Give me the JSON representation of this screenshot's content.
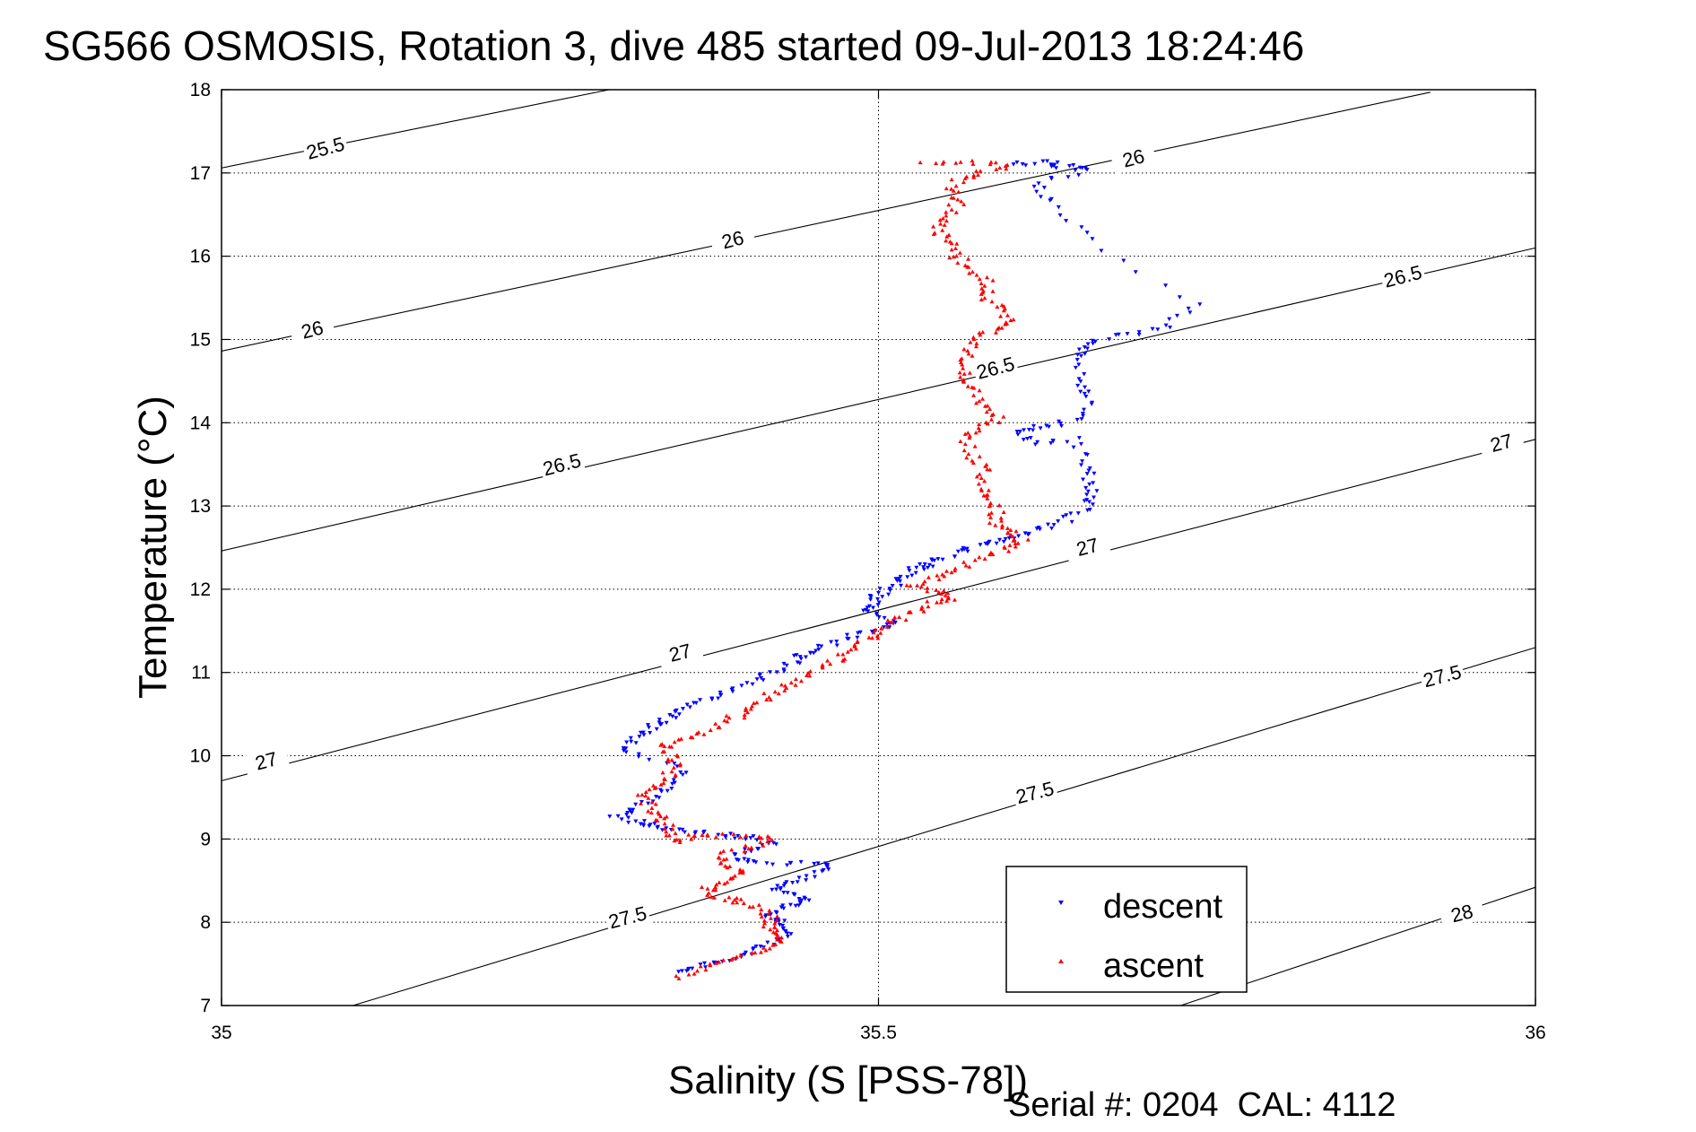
{
  "chart_data": {
    "type": "scatter",
    "title": "SG566 OSMOSIS, Rotation 3, dive 485 started 09-Jul-2013 18:24:46",
    "xlabel": "Salinity (S [PSS-78])",
    "ylabel": "Temperature (°C)",
    "xlim": [
      35,
      36
    ],
    "ylim": [
      7,
      18
    ],
    "xticks": [
      "35",
      "35.5",
      "36"
    ],
    "yticks": [
      "7",
      "8",
      "9",
      "10",
      "11",
      "12",
      "13",
      "14",
      "15",
      "16",
      "17",
      "18"
    ],
    "grid": true,
    "legend_position": "bottom-right",
    "footer": "Serial #: 0204  CAL: 4112",
    "contours": [
      {
        "label": "25.5",
        "points": [
          [
            35,
            17.06
          ],
          [
            35.295,
            18.0
          ]
        ]
      },
      {
        "label": "26",
        "points": [
          [
            35,
            14.86
          ],
          [
            35.92,
            17.97
          ]
        ]
      },
      {
        "label": "26.5",
        "points": [
          [
            35,
            12.46
          ],
          [
            36,
            16.1
          ]
        ]
      },
      {
        "label": "27",
        "points": [
          [
            35,
            9.7
          ],
          [
            36,
            13.8
          ]
        ]
      },
      {
        "label": "27.5",
        "points": [
          [
            35.1,
            7.0
          ],
          [
            36,
            11.3
          ]
        ]
      },
      {
        "label": "28",
        "points": [
          [
            35.73,
            7.0
          ],
          [
            36,
            8.42
          ]
        ]
      }
    ],
    "contour_labels": [
      {
        "text": "25.5",
        "s": 35.08,
        "t": 17.24
      },
      {
        "text": "26",
        "s": 35.39,
        "t": 16.14
      },
      {
        "text": "26",
        "s": 35.07,
        "t": 15.06
      },
      {
        "text": "26",
        "s": 35.695,
        "t": 17.12
      },
      {
        "text": "26.5",
        "s": 35.26,
        "t": 13.44
      },
      {
        "text": "26.5",
        "s": 35.59,
        "t": 14.6
      },
      {
        "text": "26.5",
        "s": 35.9,
        "t": 15.7
      },
      {
        "text": "27",
        "s": 35.035,
        "t": 9.88
      },
      {
        "text": "27",
        "s": 35.35,
        "t": 11.18
      },
      {
        "text": "27",
        "s": 35.66,
        "t": 12.45
      },
      {
        "text": "27",
        "s": 35.975,
        "t": 13.7
      },
      {
        "text": "27.5",
        "s": 35.31,
        "t": 8.0
      },
      {
        "text": "27.5",
        "s": 35.62,
        "t": 9.5
      },
      {
        "text": "27.5",
        "s": 35.93,
        "t": 10.9
      },
      {
        "text": "28",
        "s": 35.945,
        "t": 8.05
      }
    ],
    "series": [
      {
        "name": "descent",
        "color": "#0000ff",
        "marker": "triangle-down",
        "trace": [
          [
            35.6,
            17.1
          ],
          [
            35.63,
            17.13
          ],
          [
            35.64,
            17.08
          ],
          [
            35.66,
            17.05
          ],
          [
            35.62,
            16.9
          ],
          [
            35.63,
            16.65
          ],
          [
            35.66,
            16.2
          ],
          [
            35.74,
            15.4
          ],
          [
            35.72,
            15.15
          ],
          [
            35.68,
            15.05
          ],
          [
            35.66,
            14.95
          ],
          [
            35.655,
            14.8
          ],
          [
            35.655,
            14.5
          ],
          [
            35.66,
            14.3
          ],
          [
            35.65,
            14.05
          ],
          [
            35.625,
            13.95
          ],
          [
            35.61,
            13.9
          ],
          [
            35.615,
            13.75
          ],
          [
            35.65,
            13.8
          ],
          [
            35.655,
            13.5
          ],
          [
            35.66,
            13.3
          ],
          [
            35.665,
            13.1
          ],
          [
            35.655,
            12.95
          ],
          [
            35.64,
            12.8
          ],
          [
            35.62,
            12.7
          ],
          [
            35.6,
            12.6
          ],
          [
            35.585,
            12.55
          ],
          [
            35.565,
            12.48
          ],
          [
            35.55,
            12.38
          ],
          [
            35.54,
            12.3
          ],
          [
            35.53,
            12.25
          ],
          [
            35.52,
            12.15
          ],
          [
            35.51,
            12.05
          ],
          [
            35.5,
            11.93
          ],
          [
            35.495,
            11.82
          ],
          [
            35.49,
            11.72
          ],
          [
            35.51,
            11.62
          ],
          [
            35.505,
            11.52
          ],
          [
            35.485,
            11.45
          ],
          [
            35.465,
            11.35
          ],
          [
            35.45,
            11.25
          ],
          [
            35.44,
            11.17
          ],
          [
            35.425,
            11.05
          ],
          [
            35.41,
            10.95
          ],
          [
            35.395,
            10.82
          ],
          [
            35.375,
            10.7
          ],
          [
            35.355,
            10.6
          ],
          [
            35.345,
            10.5
          ],
          [
            35.335,
            10.4
          ],
          [
            35.325,
            10.3
          ],
          [
            35.315,
            10.18
          ],
          [
            35.305,
            10.05
          ],
          [
            35.35,
            9.85
          ],
          [
            35.345,
            9.65
          ],
          [
            35.33,
            9.5
          ],
          [
            35.315,
            9.35
          ],
          [
            35.3,
            9.25
          ],
          [
            35.32,
            9.2
          ],
          [
            35.33,
            9.13
          ],
          [
            35.35,
            9.1
          ],
          [
            35.375,
            9.05
          ],
          [
            35.4,
            9.02
          ],
          [
            35.42,
            8.95
          ],
          [
            35.4,
            8.85
          ],
          [
            35.39,
            8.75
          ],
          [
            35.42,
            8.7
          ],
          [
            35.455,
            8.72
          ],
          [
            35.46,
            8.62
          ],
          [
            35.44,
            8.52
          ],
          [
            35.42,
            8.43
          ],
          [
            35.43,
            8.35
          ],
          [
            35.45,
            8.27
          ],
          [
            35.43,
            8.2
          ],
          [
            35.415,
            8.1
          ],
          [
            35.425,
            8.0
          ],
          [
            35.43,
            7.9
          ],
          [
            35.43,
            7.8
          ],
          [
            35.41,
            7.7
          ],
          [
            35.395,
            7.6
          ],
          [
            35.38,
            7.52
          ],
          [
            35.36,
            7.46
          ],
          [
            35.345,
            7.38
          ]
        ]
      },
      {
        "name": "ascent",
        "color": "#ff0000",
        "marker": "triangle-up",
        "trace": [
          [
            35.345,
            7.35
          ],
          [
            35.37,
            7.45
          ],
          [
            35.39,
            7.55
          ],
          [
            35.41,
            7.65
          ],
          [
            35.425,
            7.75
          ],
          [
            35.42,
            7.85
          ],
          [
            35.415,
            7.95
          ],
          [
            35.42,
            8.05
          ],
          [
            35.41,
            8.15
          ],
          [
            35.395,
            8.25
          ],
          [
            35.38,
            8.3
          ],
          [
            35.37,
            8.4
          ],
          [
            35.38,
            8.5
          ],
          [
            35.4,
            8.6
          ],
          [
            35.385,
            8.7
          ],
          [
            35.38,
            8.8
          ],
          [
            35.4,
            8.9
          ],
          [
            35.42,
            9.0
          ],
          [
            35.39,
            9.05
          ],
          [
            35.36,
            9.03
          ],
          [
            35.345,
            8.98
          ],
          [
            35.34,
            9.1
          ],
          [
            35.335,
            9.25
          ],
          [
            35.33,
            9.35
          ],
          [
            35.32,
            9.5
          ],
          [
            35.325,
            9.62
          ],
          [
            35.34,
            9.75
          ],
          [
            35.345,
            9.9
          ],
          [
            35.34,
            10.05
          ],
          [
            35.335,
            10.15
          ],
          [
            35.36,
            10.25
          ],
          [
            35.38,
            10.38
          ],
          [
            35.395,
            10.5
          ],
          [
            35.41,
            10.62
          ],
          [
            35.42,
            10.75
          ],
          [
            35.435,
            10.87
          ],
          [
            35.45,
            11.0
          ],
          [
            35.465,
            11.12
          ],
          [
            35.48,
            11.25
          ],
          [
            35.49,
            11.37
          ],
          [
            35.5,
            11.5
          ],
          [
            35.51,
            11.6
          ],
          [
            35.525,
            11.72
          ],
          [
            35.54,
            11.82
          ],
          [
            35.555,
            11.9
          ],
          [
            35.545,
            11.98
          ],
          [
            35.525,
            12.05
          ],
          [
            35.545,
            12.15
          ],
          [
            35.56,
            12.25
          ],
          [
            35.58,
            12.38
          ],
          [
            35.6,
            12.5
          ],
          [
            35.61,
            12.6
          ],
          [
            35.6,
            12.7
          ],
          [
            35.59,
            12.8
          ],
          [
            35.59,
            12.95
          ],
          [
            35.585,
            13.1
          ],
          [
            35.575,
            13.25
          ],
          [
            35.58,
            13.45
          ],
          [
            35.57,
            13.6
          ],
          [
            35.565,
            13.8
          ],
          [
            35.58,
            13.95
          ],
          [
            35.59,
            14.05
          ],
          [
            35.58,
            14.2
          ],
          [
            35.575,
            14.4
          ],
          [
            35.565,
            14.55
          ],
          [
            35.565,
            14.7
          ],
          [
            35.57,
            14.9
          ],
          [
            35.58,
            15.05
          ],
          [
            35.59,
            15.15
          ],
          [
            35.6,
            15.25
          ],
          [
            35.59,
            15.4
          ],
          [
            35.58,
            15.55
          ],
          [
            35.585,
            15.7
          ],
          [
            35.57,
            15.85
          ],
          [
            35.56,
            16.0
          ],
          [
            35.555,
            16.15
          ],
          [
            35.545,
            16.3
          ],
          [
            35.55,
            16.45
          ],
          [
            35.56,
            16.6
          ],
          [
            35.555,
            16.75
          ],
          [
            35.56,
            16.9
          ],
          [
            35.58,
            17.02
          ],
          [
            35.6,
            17.1
          ],
          [
            35.56,
            17.14
          ],
          [
            35.53,
            17.12
          ]
        ]
      }
    ]
  }
}
